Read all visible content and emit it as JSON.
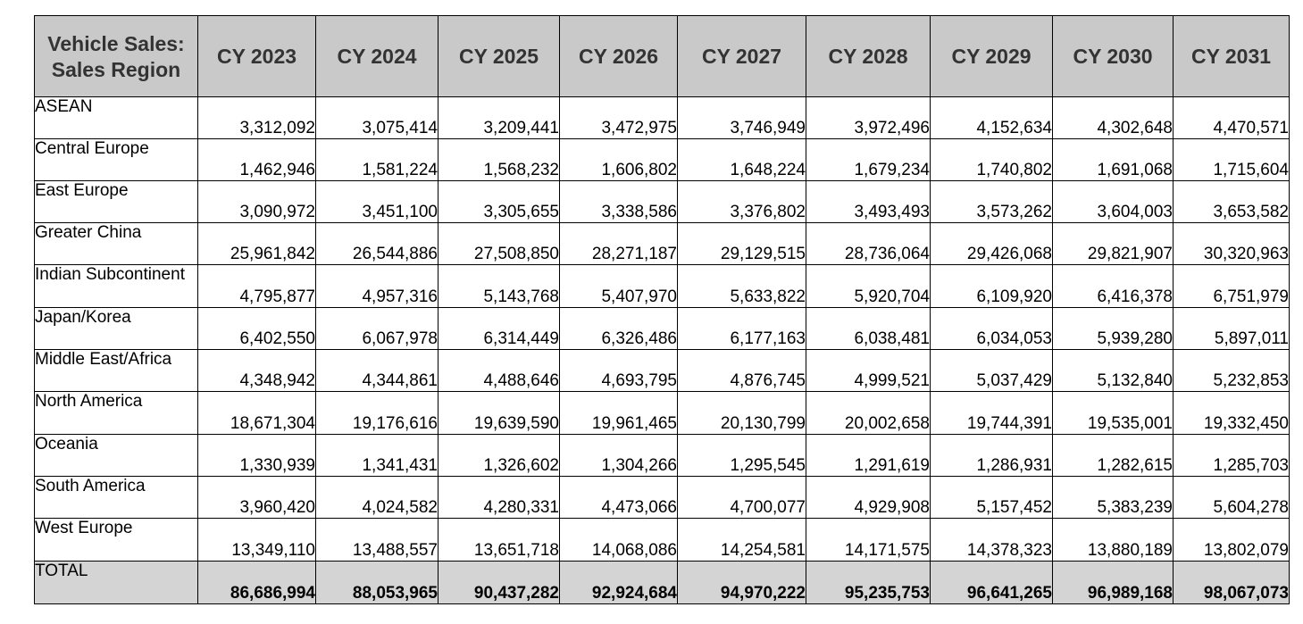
{
  "table": {
    "headers": [
      "Vehicle Sales: Sales Region",
      "CY 2023",
      "CY 2024",
      "CY 2025",
      "CY 2026",
      "CY 2027",
      "CY 2028",
      "CY 2029",
      "CY 2030",
      "CY 2031"
    ],
    "rows": [
      {
        "region": "ASEAN",
        "values": [
          "3,312,092",
          "3,075,414",
          "3,209,441",
          "3,472,975",
          "3,746,949",
          "3,972,496",
          "4,152,634",
          "4,302,648",
          "4,470,571"
        ]
      },
      {
        "region": "Central Europe",
        "values": [
          "1,462,946",
          "1,581,224",
          "1,568,232",
          "1,606,802",
          "1,648,224",
          "1,679,234",
          "1,740,802",
          "1,691,068",
          "1,715,604"
        ]
      },
      {
        "region": "East Europe",
        "values": [
          "3,090,972",
          "3,451,100",
          "3,305,655",
          "3,338,586",
          "3,376,802",
          "3,493,493",
          "3,573,262",
          "3,604,003",
          "3,653,582"
        ]
      },
      {
        "region": "Greater China",
        "values": [
          "25,961,842",
          "26,544,886",
          "27,508,850",
          "28,271,187",
          "29,129,515",
          "28,736,064",
          "29,426,068",
          "29,821,907",
          "30,320,963"
        ]
      },
      {
        "region": "Indian Subcontinent",
        "values": [
          "4,795,877",
          "4,957,316",
          "5,143,768",
          "5,407,970",
          "5,633,822",
          "5,920,704",
          "6,109,920",
          "6,416,378",
          "6,751,979"
        ]
      },
      {
        "region": "Japan/Korea",
        "values": [
          "6,402,550",
          "6,067,978",
          "6,314,449",
          "6,326,486",
          "6,177,163",
          "6,038,481",
          "6,034,053",
          "5,939,280",
          "5,897,011"
        ]
      },
      {
        "region": "Middle East/Africa",
        "values": [
          "4,348,942",
          "4,344,861",
          "4,488,646",
          "4,693,795",
          "4,876,745",
          "4,999,521",
          "5,037,429",
          "5,132,840",
          "5,232,853"
        ]
      },
      {
        "region": "North America",
        "values": [
          "18,671,304",
          "19,176,616",
          "19,639,590",
          "19,961,465",
          "20,130,799",
          "20,002,658",
          "19,744,391",
          "19,535,001",
          "19,332,450"
        ]
      },
      {
        "region": "Oceania",
        "values": [
          "1,330,939",
          "1,341,431",
          "1,326,602",
          "1,304,266",
          "1,295,545",
          "1,291,619",
          "1,286,931",
          "1,282,615",
          "1,285,703"
        ]
      },
      {
        "region": "South America",
        "values": [
          "3,960,420",
          "4,024,582",
          "4,280,331",
          "4,473,066",
          "4,700,077",
          "4,929,908",
          "5,157,452",
          "5,383,239",
          "5,604,278"
        ]
      },
      {
        "region": "West Europe",
        "values": [
          "13,349,110",
          "13,488,557",
          "13,651,718",
          "14,068,086",
          "14,254,581",
          "14,171,575",
          "14,378,323",
          "13,880,189",
          "13,802,079"
        ]
      }
    ],
    "total": {
      "region": "TOTAL",
      "values": [
        "86,686,994",
        "88,053,965",
        "90,437,282",
        "92,924,684",
        "94,970,222",
        "95,235,753",
        "96,641,265",
        "96,989,168",
        "98,067,073"
      ]
    }
  }
}
